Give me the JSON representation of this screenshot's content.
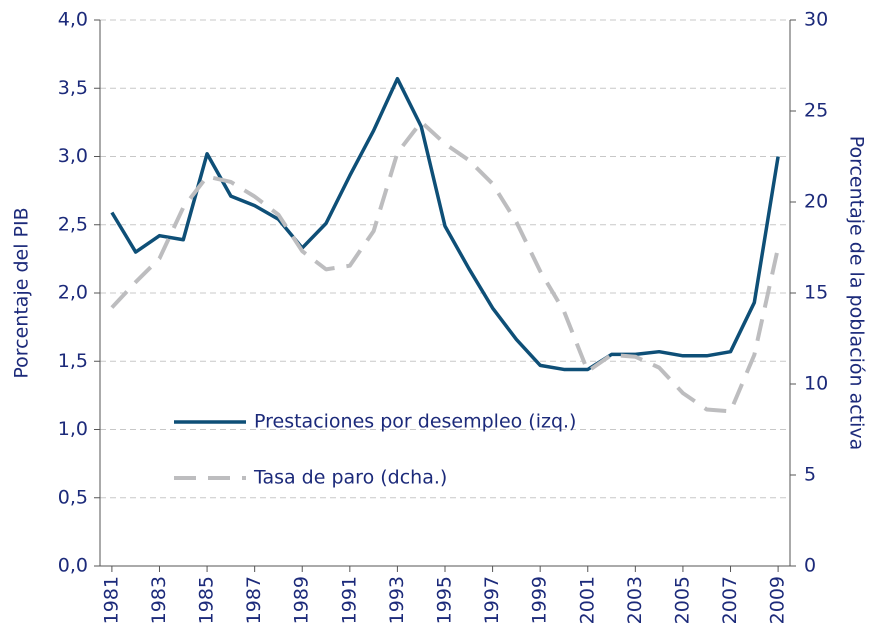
{
  "chart_data": {
    "type": "line",
    "ylabel": "Porcentaje del PIB",
    "y2label": "Porcentaje de la población activa",
    "x": [
      1981,
      1982,
      1983,
      1984,
      1985,
      1986,
      1987,
      1988,
      1989,
      1990,
      1991,
      1992,
      1993,
      1994,
      1995,
      1996,
      1997,
      1998,
      1999,
      2000,
      2001,
      2002,
      2003,
      2004,
      2005,
      2006,
      2007,
      2008,
      2009
    ],
    "xlim": [
      1980.5,
      2009.5
    ],
    "xticks": [
      1981,
      1983,
      1985,
      1987,
      1989,
      1991,
      1993,
      1995,
      1997,
      1999,
      2001,
      2003,
      2005,
      2007,
      2009
    ],
    "ylim": [
      0,
      4
    ],
    "yticks": [
      {
        "value": 0,
        "label": "0,0"
      },
      {
        "value": 0.5,
        "label": "0,5"
      },
      {
        "value": 1,
        "label": "1,0"
      },
      {
        "value": 1.5,
        "label": "1,5"
      },
      {
        "value": 2,
        "label": "2,0"
      },
      {
        "value": 2.5,
        "label": "2,5"
      },
      {
        "value": 3,
        "label": "3,0"
      },
      {
        "value": 3.5,
        "label": "3,5"
      },
      {
        "value": 4,
        "label": "4,0"
      }
    ],
    "y2lim": [
      0,
      30
    ],
    "y2ticks": [
      0,
      5,
      10,
      15,
      20,
      25,
      30
    ],
    "grid": true,
    "series": [
      {
        "name": "Prestaciones por desempleo (izq.)",
        "color": "#0e4f77",
        "dash": false,
        "values": [
          2.59,
          2.3,
          2.42,
          2.39,
          3.02,
          2.71,
          2.64,
          2.54,
          2.33,
          2.51,
          2.86,
          3.19,
          3.57,
          3.22,
          2.49,
          2.18,
          1.89,
          1.66,
          1.47,
          1.44,
          1.44,
          1.55,
          1.55,
          1.57,
          1.54,
          1.54,
          1.57,
          1.93,
          3.0
        ]
      },
      {
        "name": "Tasa de paro (dcha.)",
        "color": "#bdbdbf",
        "dash": true,
        "axis": "y2",
        "values": [
          14.2,
          15.6,
          16.9,
          19.7,
          21.4,
          21.1,
          20.3,
          19.3,
          17.3,
          16.3,
          16.5,
          18.4,
          22.7,
          24.4,
          23.2,
          22.3,
          21.0,
          18.9,
          16.2,
          14.0,
          10.7,
          11.6,
          11.5,
          10.9,
          9.5,
          8.6,
          8.5,
          11.6,
          17.5
        ]
      }
    ]
  }
}
